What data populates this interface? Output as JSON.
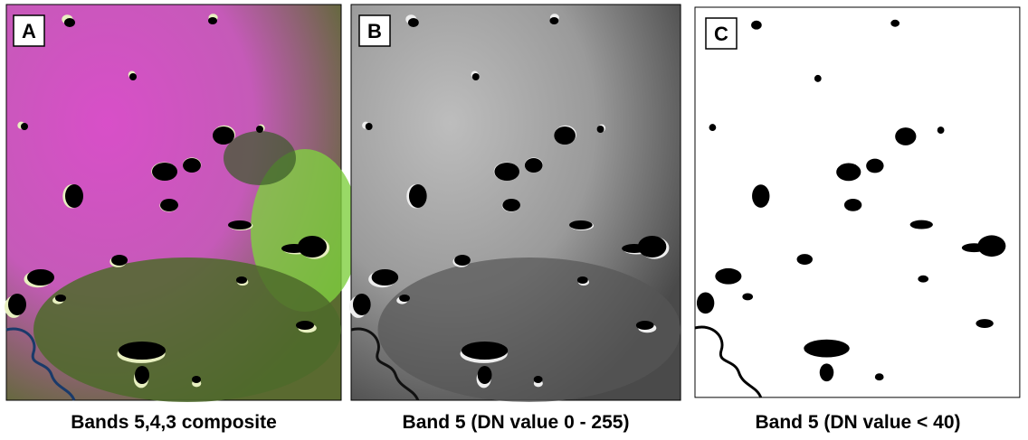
{
  "panels": [
    {
      "letter": "A",
      "caption": "Bands 5,4,3 composite"
    },
    {
      "letter": "B",
      "caption": "Band 5 (DN value 0 - 255)"
    },
    {
      "letter": "C",
      "caption": "Band 5 (DN value < 40)"
    }
  ]
}
